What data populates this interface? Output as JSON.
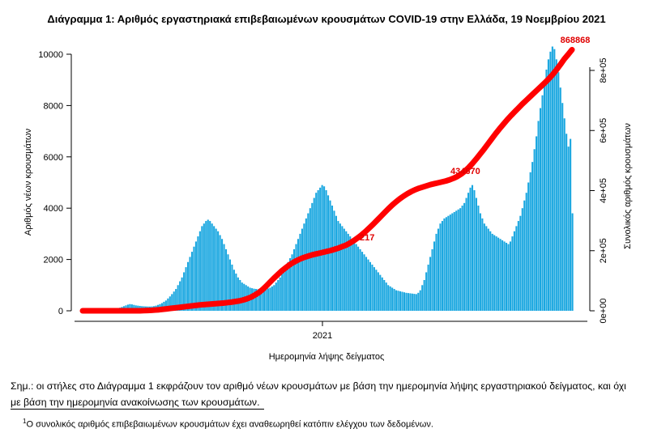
{
  "chart_data": {
    "type": "bar",
    "title": "Διάγραμμα 1: Αριθμός εργαστηριακά επιβεβαιωμένων κρουσμάτων COVID-19 στην Ελλάδα, 19 Νοεμβρίου 2021",
    "xlabel": "Ημερομηνία λήψης δείγματος",
    "ylabel": "Αριθμός νέων κρουσμάτων",
    "y2label": "Συνολικός αριθμός κρουσμάτων",
    "x_ticks": [
      "2021"
    ],
    "y_ticks": [
      "0",
      "2000",
      "4000",
      "6000",
      "8000",
      "10000"
    ],
    "y2_ticks": [
      "0e+00",
      "2e+05",
      "4e+05",
      "6e+05",
      "8e+05"
    ],
    "ylim": [
      0,
      10500
    ],
    "y2lim": [
      0,
      900000
    ],
    "colors": {
      "bars": "#1aa7e0",
      "cumulative": "#ff0000",
      "annotation": "#e00000"
    },
    "series": [
      {
        "name": "Νέα κρούσματα",
        "type": "bar",
        "values": [
          2,
          3,
          4,
          5,
          6,
          8,
          10,
          12,
          15,
          18,
          22,
          28,
          35,
          40,
          45,
          50,
          60,
          80,
          100,
          120,
          150,
          180,
          210,
          240,
          260,
          250,
          230,
          210,
          200,
          190,
          180,
          175,
          170,
          168,
          165,
          170,
          180,
          200,
          230,
          260,
          300,
          350,
          400,
          480,
          560,
          650,
          750,
          850,
          1000,
          1150,
          1300,
          1500,
          1700,
          1900,
          2100,
          2300,
          2500,
          2700,
          2900,
          3100,
          3300,
          3400,
          3500,
          3550,
          3500,
          3400,
          3300,
          3200,
          3100,
          2950,
          2800,
          2600,
          2400,
          2200,
          2000,
          1800,
          1600,
          1450,
          1300,
          1200,
          1100,
          1050,
          1000,
          950,
          900,
          880,
          860,
          850,
          840,
          830,
          820,
          830,
          850,
          870,
          900,
          950,
          1000,
          1100,
          1200,
          1300,
          1450,
          1600,
          1750,
          1900,
          2050,
          2200,
          2400,
          2600,
          2800,
          3000,
          3200,
          3400,
          3600,
          3800,
          4000,
          4200,
          4400,
          4600,
          4700,
          4800,
          4900,
          4850,
          4700,
          4500,
          4300,
          4100,
          3900,
          3700,
          3500,
          3400,
          3300,
          3200,
          3100,
          3000,
          2900,
          2800,
          2700,
          2600,
          2500,
          2400,
          2300,
          2200,
          2100,
          2000,
          1900,
          1800,
          1700,
          1600,
          1500,
          1400,
          1300,
          1200,
          1100,
          1000,
          950,
          900,
          850,
          800,
          780,
          760,
          740,
          720,
          700,
          690,
          680,
          670,
          660,
          650,
          700,
          800,
          1000,
          1200,
          1500,
          1800,
          2100,
          2400,
          2700,
          3000,
          3200,
          3400,
          3500,
          3600,
          3650,
          3700,
          3750,
          3800,
          3850,
          3900,
          3950,
          4000,
          4100,
          4200,
          4400,
          4600,
          4800,
          4900,
          4700,
          4400,
          4100,
          3800,
          3600,
          3400,
          3300,
          3200,
          3100,
          3000,
          2950,
          2900,
          2850,
          2800,
          2750,
          2700,
          2650,
          2600,
          2700,
          2900,
          3100,
          3300,
          3500,
          3700,
          4000,
          4300,
          4600,
          5000,
          5400,
          5800,
          6300,
          6800,
          7400,
          7900,
          8400,
          8900,
          9400,
          9800,
          10100,
          10300,
          10200,
          9800,
          9300,
          8700,
          8100,
          7500,
          6900,
          6400,
          6700,
          3800
        ]
      },
      {
        "name": "Συνολικός αριθμός κρουσμάτων",
        "type": "line",
        "axis": "y2",
        "values": [
          0,
          0,
          0,
          0,
          0,
          0,
          0,
          0,
          0,
          0,
          0,
          0,
          0,
          0,
          0,
          0,
          500,
          1000,
          1500,
          2500,
          3500,
          5000,
          6500,
          8000,
          9500,
          11000,
          12500,
          14000,
          15500,
          17000,
          18500,
          20000,
          21000,
          22000,
          23000,
          24000,
          25000,
          26000,
          27500,
          29000,
          31000,
          33000,
          36000,
          40000,
          45000,
          52000,
          60000,
          70000,
          82000,
          95000,
          108000,
          120000,
          132000,
          142000,
          152000,
          160000,
          167000,
          173000,
          178000,
          182000,
          186000,
          189000,
          192000,
          195000,
          198000,
          201000,
          205000,
          209000,
          214000,
          219000,
          226000,
          234000,
          243000,
          253000,
          264000,
          276000,
          288000,
          301000,
          314000,
          327000,
          340000,
          352000,
          363000,
          373000,
          382000,
          390000,
          397000,
          403000,
          408000,
          412000,
          416000,
          420000,
          423000,
          426000,
          429000,
          432000,
          436000,
          441000,
          447000,
          455000,
          465000,
          477000,
          491000,
          506000,
          522000,
          538000,
          555000,
          572000,
          589000,
          605000,
          620000,
          635000,
          649000,
          662000,
          675000,
          688000,
          700000,
          712000,
          724000,
          736000,
          748000,
          760000,
          773000,
          787000,
          803000,
          820000,
          838000,
          853000,
          868868
        ]
      }
    ],
    "annotations": [
      "217",
      "434670",
      "868868"
    ]
  },
  "footnote": {
    "main_line1": "Σημ.: οι στήλες στο Διάγραμμα 1 εκφράζουν τον αριθμό νέων κρουσμάτων με βάση την ημερομηνία λήψης εργαστηριακού δείγματος, και όχι",
    "main_line2": "με βάση την ημερομηνία ανακοίνωσης των κρουσμάτων.",
    "sup": "1",
    "foot_text": "Ο συνολικός αριθμός επιβεβαιωμένων κρουσμάτων έχει αναθεωρηθεί κατόπιν ελέγχου των δεδομένων."
  }
}
